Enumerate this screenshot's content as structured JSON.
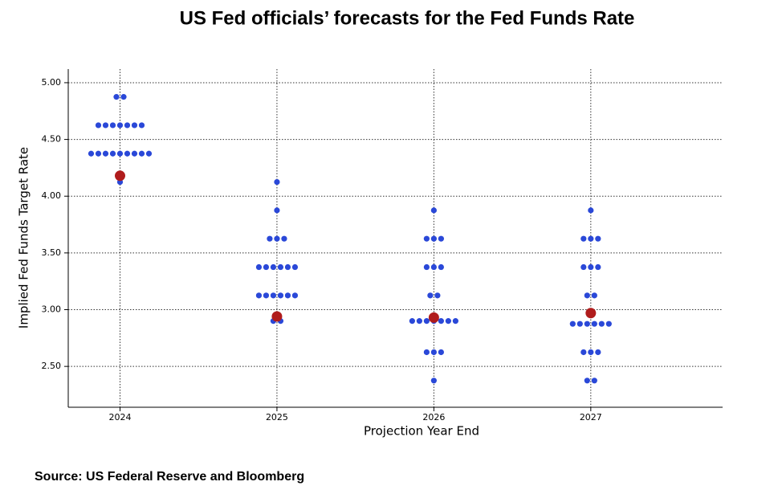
{
  "chart_data": {
    "type": "scatter",
    "title": "US Fed officials’ forecasts for the Fed Funds Rate",
    "x_label": "Projection Year End",
    "y_label": "Implied Fed Funds Target Rate",
    "source": "Source: US Federal Reserve and Bloomberg",
    "xlim": [
      2023.67,
      2027.84
    ],
    "xticks": [
      2024,
      2025,
      2026,
      2027
    ],
    "ylim": [
      2.14,
      5.12
    ],
    "yticks": [
      {
        "value": 2.5,
        "label": "2.50"
      },
      {
        "value": 3,
        "label": "3.00"
      },
      {
        "value": 3.5,
        "label": "3.50"
      },
      {
        "value": 4,
        "label": "4.00"
      },
      {
        "value": 4.5,
        "label": "4.50"
      },
      {
        "value": 5,
        "label": "5.00"
      }
    ],
    "grid": true,
    "series": [
      {
        "color": "#2a48d8",
        "size": 3.6,
        "x": [
          2024,
          2024,
          2024,
          2024,
          2024,
          2024,
          2024,
          2024,
          2024,
          2024,
          2024,
          2024,
          2024,
          2024,
          2024,
          2024,
          2024,
          2024,
          2024,
          2025,
          2025,
          2025,
          2025,
          2025,
          2025,
          2025,
          2025,
          2025,
          2025,
          2025,
          2025,
          2025,
          2025,
          2025,
          2025,
          2025,
          2025,
          2025,
          2026,
          2026,
          2026,
          2026,
          2026,
          2026,
          2026,
          2026,
          2026,
          2026,
          2026,
          2026,
          2026,
          2026,
          2026,
          2026,
          2026,
          2026,
          2026,
          2026,
          2027,
          2027,
          2027,
          2027,
          2027,
          2027,
          2027,
          2027,
          2027,
          2027,
          2027,
          2027,
          2027,
          2027,
          2027,
          2027,
          2027,
          2027,
          2027,
          2027
        ],
        "values": [
          4.875,
          4.875,
          4.625,
          4.625,
          4.625,
          4.625,
          4.625,
          4.625,
          4.625,
          4.375,
          4.375,
          4.375,
          4.375,
          4.375,
          4.375,
          4.375,
          4.375,
          4.375,
          4.125,
          4.125,
          3.875,
          3.625,
          3.625,
          3.625,
          3.375,
          3.375,
          3.375,
          3.375,
          3.375,
          3.375,
          3.125,
          3.125,
          3.125,
          3.125,
          3.125,
          3.125,
          2.9,
          2.9,
          3.875,
          3.625,
          3.625,
          3.625,
          3.375,
          3.375,
          3.375,
          3.125,
          3.125,
          2.9,
          2.9,
          2.9,
          2.9,
          2.9,
          2.9,
          2.9,
          2.625,
          2.625,
          2.625,
          2.375,
          3.875,
          3.625,
          3.625,
          3.625,
          3.375,
          3.375,
          3.375,
          3.125,
          3.125,
          2.875,
          2.875,
          2.875,
          2.875,
          2.875,
          2.875,
          2.625,
          2.625,
          2.625,
          2.375,
          2.375
        ]
      },
      {
        "color": "#b01c1c",
        "size": 6.5,
        "x": [
          2024,
          2025,
          2026,
          2027
        ],
        "values": [
          4.18,
          2.94,
          2.93,
          2.97
        ]
      }
    ]
  }
}
